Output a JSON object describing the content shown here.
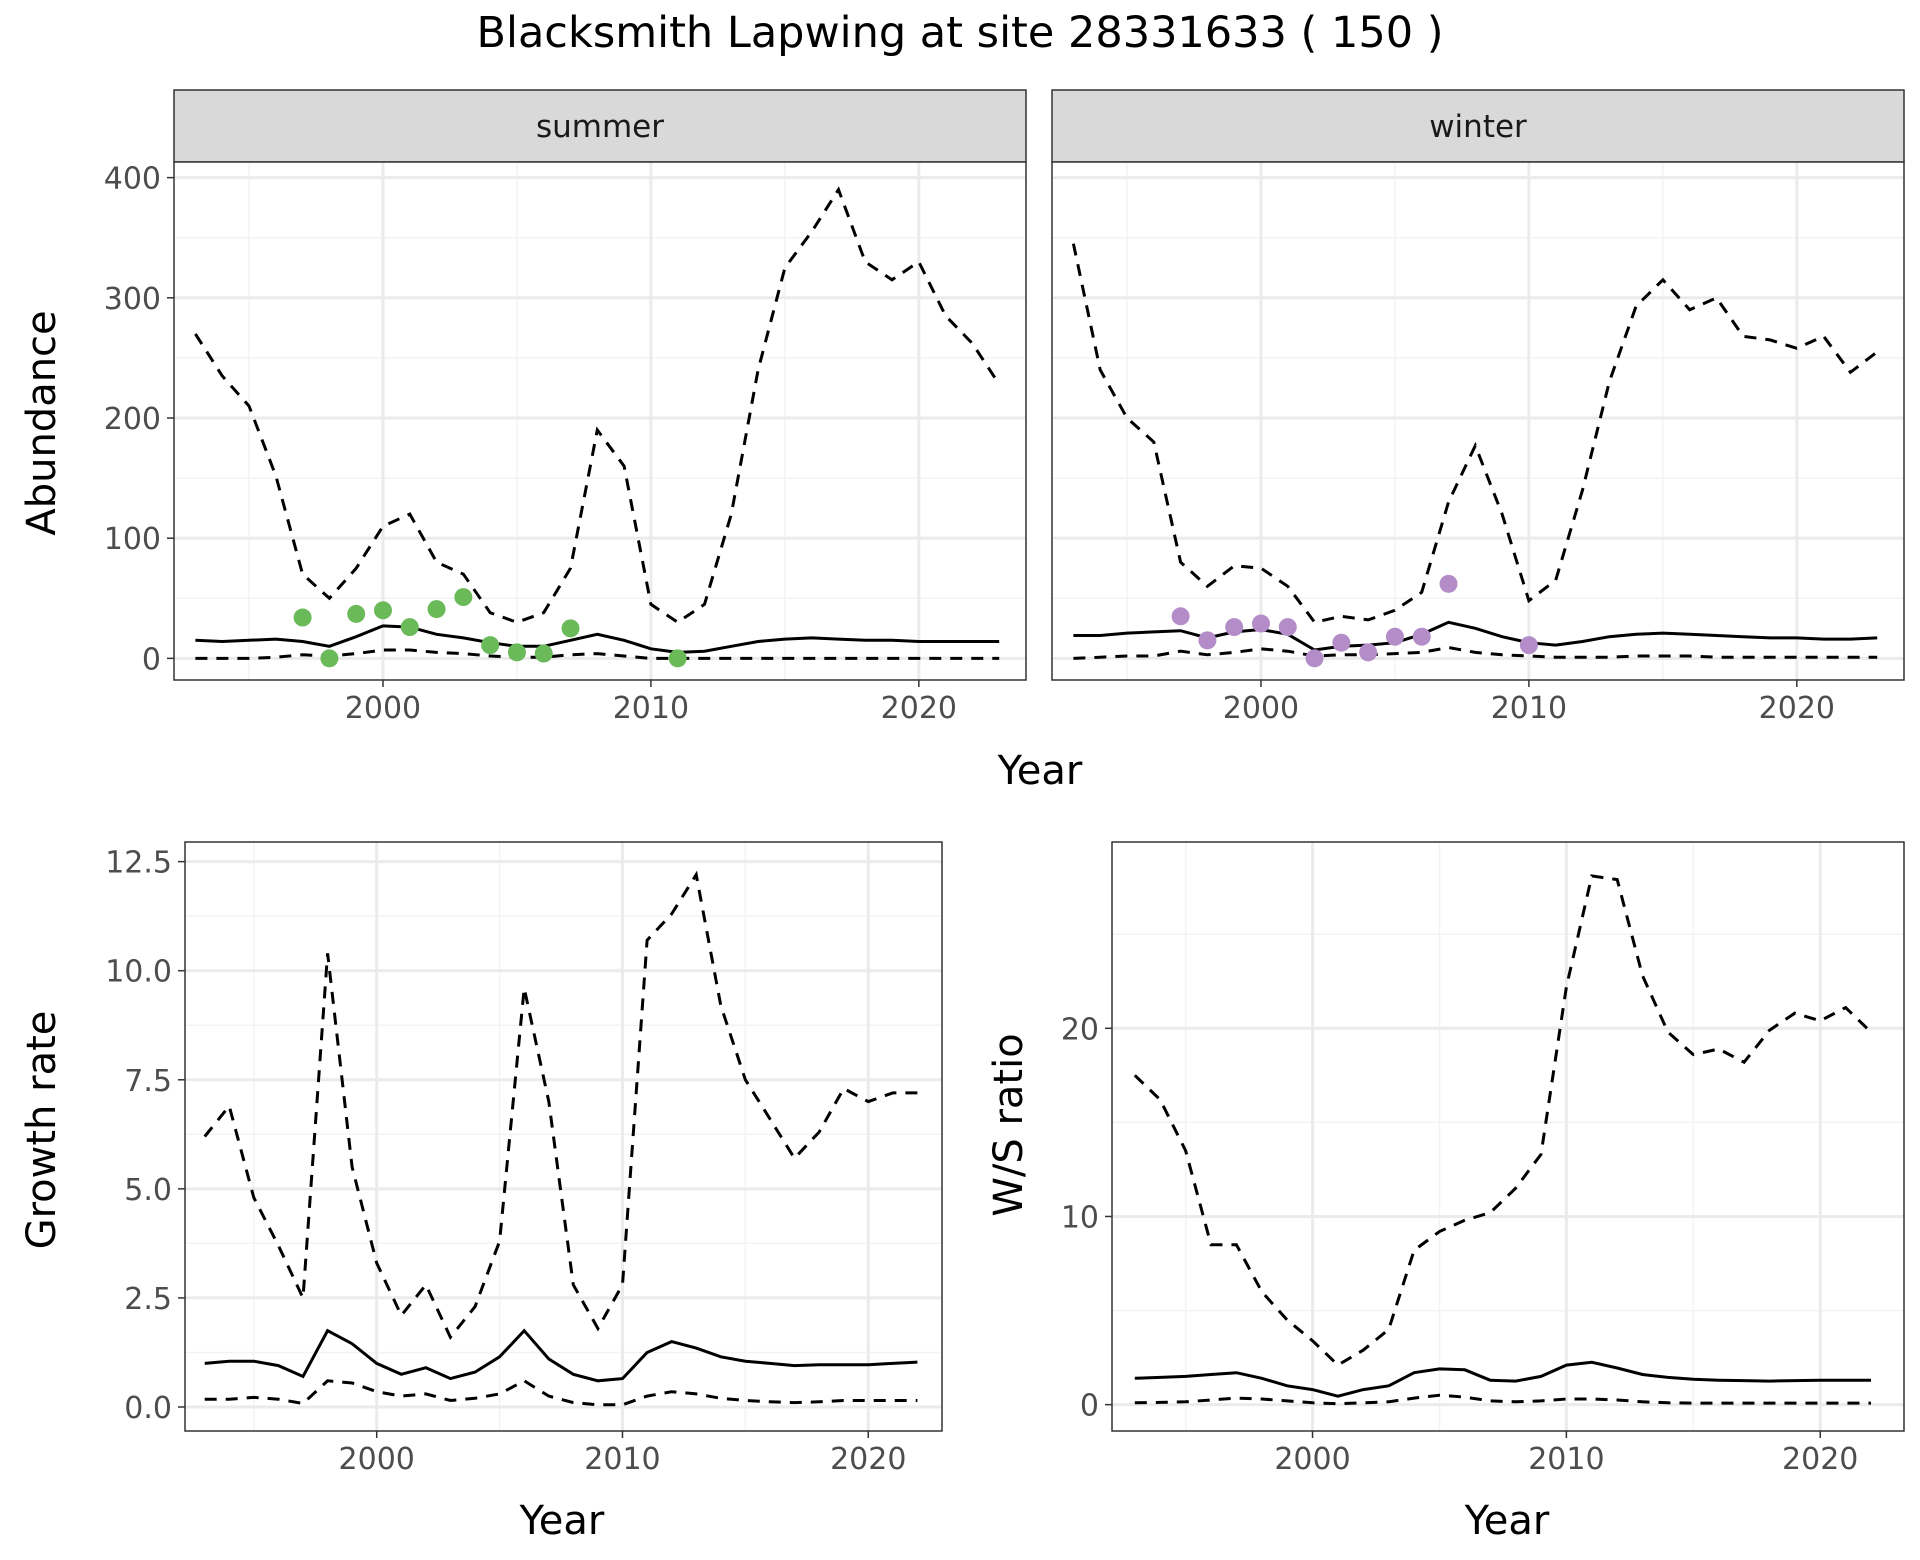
{
  "title": "Blacksmith Lapwing at site 28331633 ( 150 )",
  "colors": {
    "summer_points": "#6aba5a",
    "winter_points": "#b38cc8",
    "line": "#000000",
    "strip_fill": "#d9d9d9",
    "grid_major": "#ebebeb",
    "grid_minor": "#f3f3f3",
    "axis_text": "#4d4d4d",
    "panel_border": "#333333"
  },
  "chart_data": [
    {
      "type": "line",
      "name": "abundance",
      "xlabel": "Year",
      "ylabel": "Abundance",
      "xlim": [
        1992.2,
        2024.0
      ],
      "ylim": [
        -18,
        413
      ],
      "xticks": [
        2000,
        2010,
        2020
      ],
      "yticks": [
        0,
        100,
        200,
        300,
        400
      ],
      "grid": true,
      "facets": [
        {
          "strip": "summer",
          "point_color": "summer_points",
          "fit": {
            "x": [
              1993,
              1994,
              1995,
              1996,
              1997,
              1998,
              1999,
              2000,
              2001,
              2002,
              2003,
              2004,
              2005,
              2006,
              2007,
              2008,
              2009,
              2010,
              2011,
              2012,
              2013,
              2014,
              2015,
              2016,
              2017,
              2018,
              2019,
              2020,
              2021,
              2022,
              2023
            ],
            "y": [
              15,
              14,
              15,
              16,
              14,
              10,
              18,
              27,
              26,
              20,
              17,
              13,
              10,
              10,
              15,
              20,
              15,
              8,
              5,
              6,
              10,
              14,
              16,
              17,
              16,
              15,
              15,
              14,
              14,
              14,
              14
            ]
          },
          "upper": {
            "x": [
              1993,
              1994,
              1995,
              1996,
              1997,
              1998,
              1999,
              2000,
              2001,
              2002,
              2003,
              2004,
              2005,
              2006,
              2007,
              2008,
              2009,
              2010,
              2011,
              2012,
              2013,
              2014,
              2015,
              2016,
              2017,
              2018,
              2019,
              2020,
              2021,
              2022,
              2023
            ],
            "y": [
              270,
              235,
              210,
              152,
              70,
              50,
              75,
              110,
              120,
              80,
              70,
              38,
              30,
              38,
              75,
              190,
              160,
              45,
              30,
              45,
              120,
              240,
              325,
              355,
              390,
              330,
              315,
              330,
              285,
              262,
              228
            ]
          },
          "lower": {
            "x": [
              1993,
              1994,
              1995,
              1996,
              1997,
              1998,
              1999,
              2000,
              2001,
              2002,
              2003,
              2004,
              2005,
              2006,
              2007,
              2008,
              2009,
              2010,
              2011,
              2012,
              2013,
              2014,
              2015,
              2016,
              2017,
              2018,
              2019,
              2020,
              2021,
              2022,
              2023
            ],
            "y": [
              0,
              0,
              0,
              1,
              3,
              2,
              4,
              7,
              7,
              5,
              4,
              2,
              1,
              1,
              3,
              4,
              2,
              0,
              0,
              0,
              0,
              0,
              0,
              0,
              0,
              0,
              0,
              0,
              0,
              0,
              0
            ]
          },
          "points": {
            "x": [
              1997,
              1998,
              1999,
              2000,
              2001,
              2002,
              2003,
              2004,
              2005,
              2006,
              2007,
              2011
            ],
            "y": [
              34,
              0,
              37,
              40,
              26,
              41,
              51,
              11,
              5,
              4,
              25,
              0
            ]
          }
        },
        {
          "strip": "winter",
          "point_color": "winter_points",
          "fit": {
            "x": [
              1993,
              1994,
              1995,
              1996,
              1997,
              1998,
              1999,
              2000,
              2001,
              2002,
              2003,
              2004,
              2005,
              2006,
              2007,
              2008,
              2009,
              2010,
              2011,
              2012,
              2013,
              2014,
              2015,
              2016,
              2017,
              2018,
              2019,
              2020,
              2021,
              2022,
              2023
            ],
            "y": [
              19,
              19,
              21,
              22,
              23,
              17,
              22,
              24,
              20,
              7,
              10,
              11,
              13,
              20,
              30,
              25,
              18,
              13,
              11,
              14,
              18,
              20,
              21,
              20,
              19,
              18,
              17,
              17,
              16,
              16,
              17
            ]
          },
          "upper": {
            "x": [
              1993,
              1994,
              1995,
              1996,
              1997,
              1998,
              1999,
              2000,
              2001,
              2002,
              2003,
              2004,
              2005,
              2006,
              2007,
              2008,
              2009,
              2010,
              2011,
              2012,
              2013,
              2014,
              2015,
              2016,
              2017,
              2018,
              2019,
              2020,
              2021,
              2022,
              2023
            ],
            "y": [
              345,
              240,
              200,
              180,
              80,
              60,
              77,
              75,
              60,
              30,
              35,
              32,
              40,
              55,
              130,
              177,
              120,
              48,
              65,
              140,
              230,
              293,
              315,
              290,
              300,
              268,
              265,
              258,
              268,
              238,
              255
            ]
          },
          "lower": {
            "x": [
              1993,
              1994,
              1995,
              1996,
              1997,
              1998,
              1999,
              2000,
              2001,
              2002,
              2003,
              2004,
              2005,
              2006,
              2007,
              2008,
              2009,
              2010,
              2011,
              2012,
              2013,
              2014,
              2015,
              2016,
              2017,
              2018,
              2019,
              2020,
              2021,
              2022,
              2023
            ],
            "y": [
              0,
              1,
              2,
              2,
              6,
              3,
              5,
              8,
              6,
              2,
              3,
              3,
              4,
              5,
              9,
              5,
              3,
              2,
              1,
              1,
              1,
              2,
              2,
              2,
              1,
              1,
              1,
              1,
              1,
              1,
              1
            ]
          },
          "points": {
            "x": [
              1997,
              1998,
              1999,
              2000,
              2001,
              2002,
              2003,
              2004,
              2005,
              2006,
              2007,
              2010
            ],
            "y": [
              35,
              15,
              26,
              29,
              26,
              0,
              13,
              5,
              18,
              18,
              62,
              11
            ]
          }
        }
      ]
    },
    {
      "type": "line",
      "name": "growth",
      "xlabel": "Year",
      "ylabel": "Growth rate",
      "xlim": [
        1992.2,
        2023.0
      ],
      "ylim": [
        -0.55,
        12.95
      ],
      "xticks": [
        2000,
        2010,
        2020
      ],
      "yticks": [
        0.0,
        2.5,
        5.0,
        7.5,
        10.0,
        12.5
      ],
      "ytick_labels": [
        "0.0",
        "2.5",
        "5.0",
        "7.5",
        "10.0",
        "12.5"
      ],
      "grid": true,
      "fit": {
        "x": [
          1993,
          1994,
          1995,
          1996,
          1997,
          1998,
          1999,
          2000,
          2001,
          2002,
          2003,
          2004,
          2005,
          2006,
          2007,
          2008,
          2009,
          2010,
          2011,
          2012,
          2013,
          2014,
          2015,
          2016,
          2017,
          2018,
          2019,
          2020,
          2021,
          2022
        ],
        "y": [
          1.0,
          1.05,
          1.05,
          0.95,
          0.7,
          1.75,
          1.45,
          1.0,
          0.75,
          0.9,
          0.65,
          0.8,
          1.15,
          1.75,
          1.1,
          0.75,
          0.6,
          0.65,
          1.25,
          1.5,
          1.35,
          1.15,
          1.05,
          1.0,
          0.95,
          0.97,
          0.97,
          0.97,
          1.0,
          1.03
        ]
      },
      "upper": {
        "x": [
          1993,
          1994,
          1995,
          1996,
          1997,
          1998,
          1999,
          2000,
          2001,
          2002,
          2003,
          2004,
          2005,
          2006,
          2007,
          2008,
          2009,
          2010,
          2011,
          2012,
          2013,
          2014,
          2015,
          2016,
          2017,
          2018,
          2019,
          2020,
          2021,
          2022
        ],
        "y": [
          6.2,
          6.9,
          4.8,
          3.7,
          2.5,
          10.4,
          5.5,
          3.3,
          2.1,
          2.8,
          1.6,
          2.3,
          3.8,
          9.6,
          7.0,
          2.8,
          1.8,
          2.8,
          10.7,
          11.3,
          12.2,
          9.2,
          7.5,
          6.6,
          5.7,
          6.3,
          7.3,
          7.0,
          7.2,
          7.2
        ]
      },
      "lower": {
        "x": [
          1993,
          1994,
          1995,
          1996,
          1997,
          1998,
          1999,
          2000,
          2001,
          2002,
          2003,
          2004,
          2005,
          2006,
          2007,
          2008,
          2009,
          2010,
          2011,
          2012,
          2013,
          2014,
          2015,
          2016,
          2017,
          2018,
          2019,
          2020,
          2021,
          2022
        ],
        "y": [
          0.18,
          0.18,
          0.22,
          0.18,
          0.08,
          0.6,
          0.55,
          0.35,
          0.25,
          0.3,
          0.15,
          0.2,
          0.3,
          0.6,
          0.25,
          0.1,
          0.05,
          0.05,
          0.25,
          0.35,
          0.3,
          0.2,
          0.15,
          0.12,
          0.1,
          0.12,
          0.15,
          0.15,
          0.15,
          0.15
        ]
      }
    },
    {
      "type": "line",
      "name": "ws_ratio",
      "xlabel": "Year",
      "ylabel": "W/S ratio",
      "xlim": [
        1992.1,
        2023.3
      ],
      "ylim": [
        -1.4,
        29.9
      ],
      "xticks": [
        2000,
        2010,
        2020
      ],
      "yticks": [
        0,
        10,
        20
      ],
      "grid": true,
      "fit": {
        "x": [
          1993,
          1994,
          1995,
          1996,
          1997,
          1998,
          1999,
          2000,
          2001,
          2002,
          2003,
          2004,
          2005,
          2006,
          2007,
          2008,
          2009,
          2010,
          2011,
          2012,
          2013,
          2014,
          2015,
          2016,
          2017,
          2018,
          2019,
          2020,
          2021,
          2022
        ],
        "y": [
          1.4,
          1.45,
          1.5,
          1.6,
          1.7,
          1.4,
          1.0,
          0.8,
          0.45,
          0.8,
          1.0,
          1.7,
          1.9,
          1.85,
          1.3,
          1.25,
          1.5,
          2.1,
          2.25,
          1.95,
          1.6,
          1.45,
          1.35,
          1.3,
          1.28,
          1.25,
          1.28,
          1.3,
          1.3,
          1.3
        ]
      },
      "upper": {
        "x": [
          1993,
          1994,
          1995,
          1996,
          1997,
          1998,
          1999,
          2000,
          2001,
          2002,
          2003,
          2004,
          2005,
          2006,
          2007,
          2008,
          2009,
          2010,
          2011,
          2012,
          2013,
          2014,
          2015,
          2016,
          2017,
          2018,
          2019,
          2020,
          2021,
          2022
        ],
        "y": [
          17.5,
          16.2,
          13.5,
          8.5,
          8.5,
          6.0,
          4.5,
          3.4,
          2.1,
          2.9,
          4.0,
          8.2,
          9.2,
          9.8,
          10.2,
          11.5,
          13.3,
          22.2,
          28.1,
          27.9,
          22.8,
          19.8,
          18.6,
          18.9,
          18.2,
          19.9,
          20.8,
          20.4,
          21.1,
          19.8
        ]
      },
      "lower": {
        "x": [
          1993,
          1994,
          1995,
          1996,
          1997,
          1998,
          1999,
          2000,
          2001,
          2002,
          2003,
          2004,
          2005,
          2006,
          2007,
          2008,
          2009,
          2010,
          2011,
          2012,
          2013,
          2014,
          2015,
          2016,
          2017,
          2018,
          2019,
          2020,
          2021,
          2022
        ],
        "y": [
          0.1,
          0.12,
          0.15,
          0.25,
          0.35,
          0.3,
          0.2,
          0.1,
          0.05,
          0.1,
          0.15,
          0.35,
          0.5,
          0.4,
          0.2,
          0.15,
          0.2,
          0.3,
          0.3,
          0.25,
          0.15,
          0.1,
          0.08,
          0.08,
          0.08,
          0.08,
          0.08,
          0.08,
          0.08,
          0.08
        ]
      }
    }
  ]
}
